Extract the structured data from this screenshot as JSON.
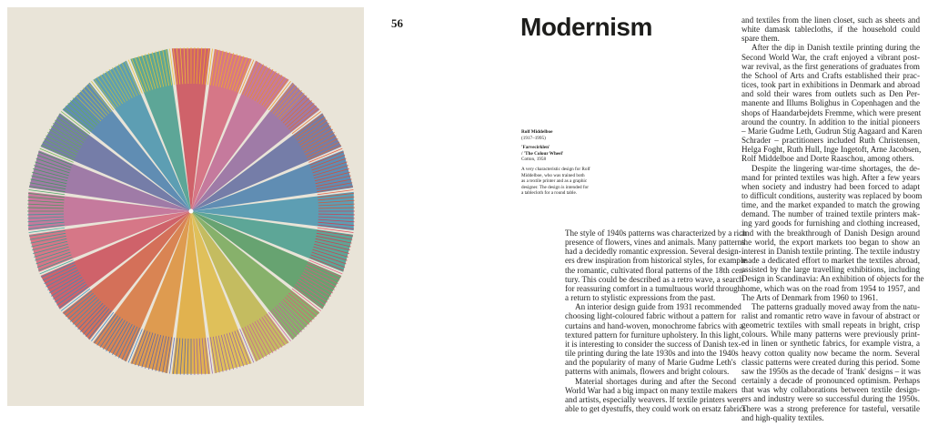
{
  "page_number": "56",
  "title": "Modernism",
  "caption": {
    "name": "Rolf Middelboe",
    "dates": "(1917–1995)",
    "work_title": "'Farvecirklen'",
    "work_title_en": "/ 'The Colour Wheel'",
    "material": "Cotton, 1958",
    "description": [
      "A very characteristic design for Rolf",
      "Middelboe, who was trained both",
      "as a textile printer and as a graphic",
      "designer. The design is intended for",
      "a tablecloth for a round table."
    ]
  },
  "columns": [
    [
      [
        "The style of 1940s patterns was characterized by a rich",
        "presence of flowers, vines and animals. Many patterns",
        "had a decidedly romantic expression. Several design-",
        "ers drew inspiration from historical styles, for example",
        "the romantic, cultivated floral patterns of the 18th cen-",
        "tury. This could be described as a retro wave, a search",
        "for reassuring comfort in a tumultuous world through",
        "a return to stylistic expressions from the past."
      ],
      [
        "An interior design guide from 1931 recommended",
        "choosing light-coloured fabric without a pattern for",
        "curtains and hand-woven, monochrome fabrics with a",
        "textured pattern for furniture upholstery. In this light,",
        "it is interesting to consider the success of Danish tex-",
        "tile printing during the late 1930s and into the 1940s",
        "and the popularity of many of Marie Gudme Leth's",
        "patterns with animals, flowers and bright colours."
      ],
      [
        "Material shortages during and after the Second",
        "World War had a big impact on many textile makers",
        "and artists, especially weavers. If textile printers were",
        "able to get dyestuffs, they could work on ersatz fabrics"
      ]
    ],
    [
      [
        "and textiles from the linen closet, such as sheets and",
        "white damask tablecloths, if the household could",
        "spare them."
      ],
      [
        "After the dip in Danish textile printing during the",
        "Second World War, the craft enjoyed a vibrant post-",
        "war revival, as the first generations of graduates from",
        "the School of Arts and Crafts established their prac-",
        "tices, took part in exhibitions in Denmark and abroad",
        "and sold their wares from outlets such as Den Per-",
        "manente and Illums Bolighus in Copenhagen and the",
        "shops of Haandarbejdets Fremme, which were present",
        "around the country. In addition to the initial pioneers",
        "– Marie Gudme Leth, Gudrun Stig Aagaard and Karen",
        "Schrader – practitioners included Ruth Christensen,",
        "Helga Foght, Ruth Hull, Inge Ingetoft, Arne Jacobsen,",
        "Rolf Middelboe and Dorte Raaschou, among others."
      ],
      [
        "Despite the lingering war-time shortages, the de-",
        "mand for printed textiles was high. After a few years",
        "when society and industry had been forced to adapt",
        "to difficult conditions, austerity was replaced by boom",
        "time, and the market expanded to match the growing",
        "demand. The number of trained textile printers mak-",
        "ing yard goods for furnishing and clothing increased,",
        "and with the breakthrough of Danish Design around",
        "the world, the export markets too began to show an",
        "interest in Danish textile printing. The textile industry",
        "made a dedicated effort to market the textiles abroad,",
        "assisted by the large travelling exhibitions, including",
        "Design in Scandinavia: An exhibition of objects for the",
        "home, which was on the road from 1954 to 1957, and",
        "The Arts of Denmark from 1960 to 1961."
      ],
      [
        "The patterns gradually moved away from the natu-",
        "ralist and romantic retro wave in favour of abstract or",
        "geometric textiles with small repeats in bright, crisp",
        "colours. While many patterns were previously print-",
        "ed in linen or synthetic fabrics, for example vistra, a",
        "heavy cotton quality now became the norm. Several",
        "classic patterns were created during this period. Some",
        "saw the 1950s as the decade of 'frank' designs – it was",
        "certainly a decade of pronounced optimism. Perhaps",
        "that was why collaborations between textile design-",
        "ers and industry were so successful during the 1950s.",
        "There was a strong preference for tasteful, versatile",
        "and high-quality textiles."
      ]
    ]
  ]
}
